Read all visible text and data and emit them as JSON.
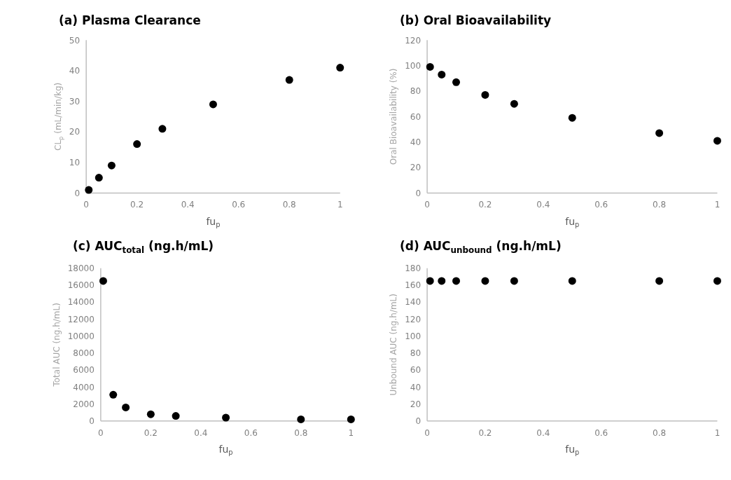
{
  "chart_data": [
    {
      "type": "scatter",
      "title": "(a) Plasma Clearance",
      "xlabel": "fu$_{p}$",
      "ylabel": "CL$_{p}$ (mL/min/kg)",
      "x": [
        0.01,
        0.05,
        0.1,
        0.2,
        0.3,
        0.5,
        0.8,
        1
      ],
      "series": [
        {
          "color": "#000000",
          "values": [
            1,
            5,
            9,
            16,
            21,
            29,
            37,
            41
          ]
        }
      ],
      "xlim": [
        0,
        1
      ],
      "xticks": [
        0,
        0.2,
        0.4,
        0.6,
        0.8,
        1
      ],
      "ylim": [
        0,
        50
      ],
      "yticks": [
        0,
        10,
        20,
        30,
        40,
        50
      ],
      "marker": "circle",
      "grid": false
    },
    {
      "type": "scatter",
      "title": "(b) Oral Bioavailability",
      "xlabel": "fu$_{p}$",
      "ylabel": "Oral Bioavailability (%)",
      "x": [
        0.01,
        0.05,
        0.1,
        0.2,
        0.3,
        0.5,
        0.8,
        1
      ],
      "series": [
        {
          "color": "#000000",
          "values": [
            99,
            93,
            87,
            77,
            70,
            59,
            47,
            41
          ]
        }
      ],
      "xlim": [
        0,
        1
      ],
      "xticks": [
        0,
        0.2,
        0.4,
        0.6,
        0.8,
        1
      ],
      "ylim": [
        0,
        120
      ],
      "yticks": [
        0,
        20,
        40,
        60,
        80,
        100,
        120
      ],
      "marker": "circle",
      "grid": false
    },
    {
      "type": "scatter",
      "title": "(c) AUC$_{total}$ (ng.h/mL)",
      "xlabel": "fu$_{p}$",
      "ylabel": "Total AUC (ng.h/mL)",
      "x": [
        0.01,
        0.05,
        0.1,
        0.2,
        0.3,
        0.5,
        0.8,
        1
      ],
      "series": [
        {
          "color": "#000000",
          "values": [
            16500,
            3100,
            1600,
            800,
            600,
            400,
            200,
            200
          ]
        }
      ],
      "xlim": [
        0,
        1
      ],
      "xticks": [
        0,
        0.2,
        0.4,
        0.6,
        0.8,
        1
      ],
      "ylim": [
        0,
        18000
      ],
      "yticks": [
        0,
        2000,
        4000,
        6000,
        8000,
        10000,
        12000,
        14000,
        16000,
        18000
      ],
      "marker": "circle",
      "grid": false
    },
    {
      "type": "scatter",
      "title": "(d) AUC$_{unbound}$ (ng.h/mL)",
      "xlabel": "fu$_{p}$",
      "ylabel": "Unbound AUC (ng.h/mL)",
      "x": [
        0.01,
        0.05,
        0.1,
        0.2,
        0.3,
        0.5,
        0.8,
        1
      ],
      "series": [
        {
          "color": "#000000",
          "values": [
            165,
            165,
            165,
            165,
            165,
            165,
            165,
            165
          ]
        }
      ],
      "xlim": [
        0,
        1
      ],
      "xticks": [
        0,
        0.2,
        0.4,
        0.6,
        0.8,
        1
      ],
      "ylim": [
        0,
        180
      ],
      "yticks": [
        0,
        20,
        40,
        60,
        80,
        100,
        120,
        140,
        160,
        180
      ],
      "marker": "circle",
      "grid": false
    }
  ]
}
